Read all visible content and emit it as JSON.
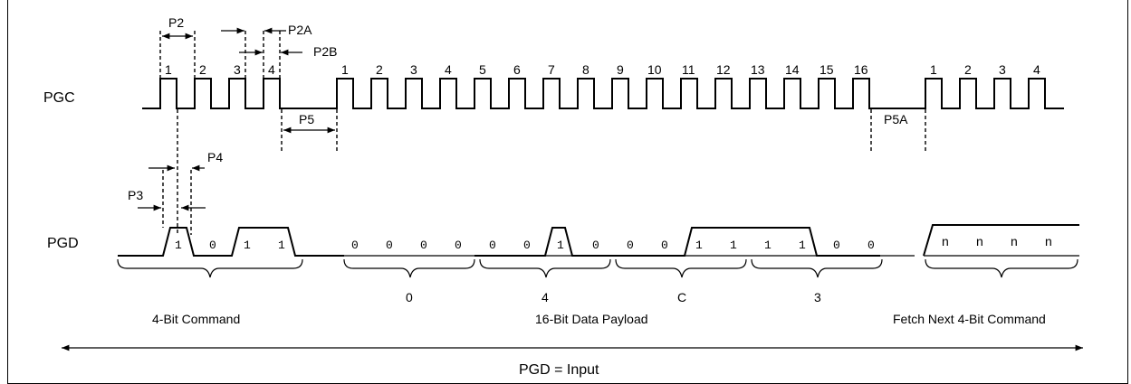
{
  "signals": {
    "clock": "PGC",
    "data": "PGD"
  },
  "clock_pulse_labels": {
    "command": [
      "1",
      "2",
      "3",
      "4"
    ],
    "payload": [
      "1",
      "2",
      "3",
      "4",
      "5",
      "6",
      "7",
      "8",
      "9",
      "10",
      "11",
      "12",
      "13",
      "14",
      "15",
      "16"
    ],
    "next_command": [
      "1",
      "2",
      "3",
      "4"
    ]
  },
  "timing_params": {
    "p2": "P2",
    "p2a": "P2A",
    "p2b": "P2B",
    "p3": "P3",
    "p4": "P4",
    "p5": "P5",
    "p5a": "P5A"
  },
  "data_bits": {
    "command": [
      "1",
      "0",
      "1",
      "1"
    ],
    "payload": [
      "0",
      "0",
      "0",
      "0",
      "0",
      "0",
      "1",
      "0",
      "0",
      "0",
      "1",
      "1",
      "1",
      "1",
      "0",
      "0"
    ],
    "next_command": [
      "n",
      "n",
      "n",
      "n"
    ]
  },
  "nibble_values": [
    "0",
    "4",
    "C",
    "3"
  ],
  "group_labels": {
    "command": "4-Bit Command",
    "payload": "16-Bit Data Payload",
    "next": "Fetch Next 4-Bit Command"
  },
  "direction_label": "PGD = Input"
}
